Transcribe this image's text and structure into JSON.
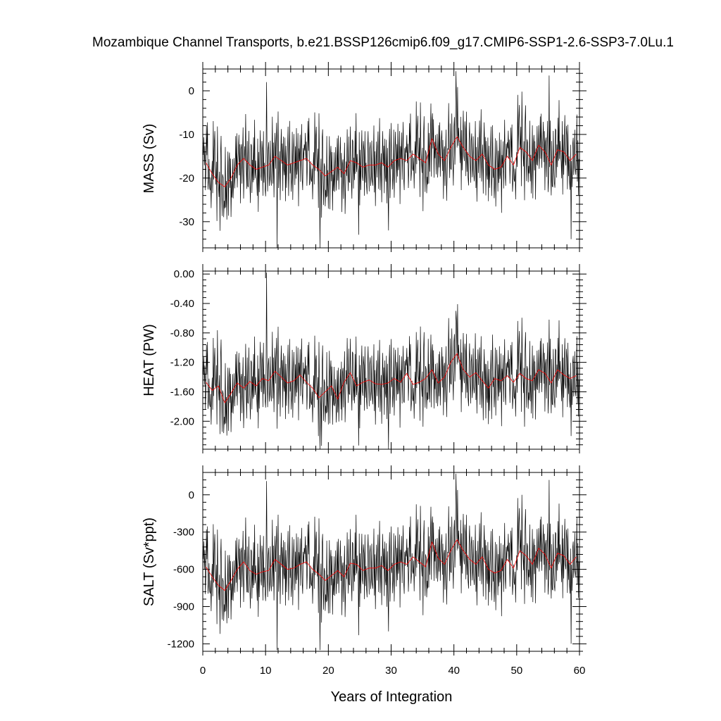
{
  "chart_data": {
    "type": "line",
    "title": "Mozambique Channel Transports, b.e21.BSSP126cmip6.f09_g17.CMIP6-SSP1-2.6-SSP3-7.0Lu.1",
    "xlabel": "Years of Integration",
    "xlim": [
      0,
      60
    ],
    "x_ticks": [
      0,
      10,
      20,
      30,
      40,
      50,
      60
    ],
    "x_tick_labels": [
      "0",
      "10",
      "20",
      "30",
      "40",
      "50",
      "60"
    ],
    "series_colors": {
      "monthly": "#000000",
      "annual": "#ff0000"
    },
    "panels": [
      {
        "name": "mass",
        "ylabel": "MASS (Sv)",
        "ylim": [
          -36,
          5
        ],
        "y_ticks": [
          0,
          -10,
          -20,
          -30
        ],
        "y_tick_labels": [
          "0",
          "-10",
          "-20",
          "-30"
        ],
        "annual_x": [
          0.5,
          1.5,
          2.5,
          3.5,
          4.5,
          5.5,
          6.5,
          7.5,
          8.5,
          9.5,
          10.5,
          11.5,
          12.5,
          13.5,
          14.5,
          15.5,
          16.5,
          17.5,
          18.5,
          19.5,
          20.5,
          21.5,
          22.5,
          23.5,
          24.5,
          25.5,
          26.5,
          27.5,
          28.5,
          29.5,
          30.5,
          31.5,
          32.5,
          33.5,
          34.5,
          35.5,
          36.5,
          37.5,
          38.5,
          39.5,
          40.5,
          41.5,
          42.5,
          43.5,
          44.5,
          45.5,
          46.5,
          47.5,
          48.5,
          49.5,
          50.5,
          51.5,
          52.5,
          53.5,
          54.5,
          55.5,
          56.5,
          57.5,
          58.5,
          59.5
        ],
        "annual_values": [
          -16.5,
          -19,
          -21,
          -22,
          -20,
          -17,
          -15.5,
          -17,
          -18,
          -17.5,
          -17,
          -15,
          -16,
          -17,
          -16.5,
          -16,
          -15.5,
          -17,
          -18,
          -19.5,
          -18.5,
          -17.5,
          -19,
          -16,
          -16.5,
          -17.5,
          -17,
          -17,
          -16.5,
          -17.5,
          -16,
          -15.5,
          -16,
          -14.5,
          -15.5,
          -16.5,
          -11,
          -14.5,
          -16,
          -13,
          -10.5,
          -13,
          -15,
          -16,
          -14.5,
          -17,
          -18,
          -17.5,
          -15,
          -17,
          -13,
          -14,
          -16,
          -12.5,
          -14,
          -17,
          -13.5,
          -14,
          -16,
          -14.5
        ]
      },
      {
        "name": "heat",
        "ylabel": "HEAT (PW)",
        "ylim": [
          -2.38,
          0.04
        ],
        "y_ticks": [
          0,
          -0.4,
          -0.8,
          -1.2,
          -1.6,
          -2.0
        ],
        "y_tick_labels": [
          "0.00",
          "-0.40",
          "-0.80",
          "-1.20",
          "-1.60",
          "-2.00"
        ],
        "annual_x": [
          0.5,
          1.5,
          2.5,
          3.5,
          4.5,
          5.5,
          6.5,
          7.5,
          8.5,
          9.5,
          10.5,
          11.5,
          12.5,
          13.5,
          14.5,
          15.5,
          16.5,
          17.5,
          18.5,
          19.5,
          20.5,
          21.5,
          22.5,
          23.5,
          24.5,
          25.5,
          26.5,
          27.5,
          28.5,
          29.5,
          30.5,
          31.5,
          32.5,
          33.5,
          34.5,
          35.5,
          36.5,
          37.5,
          38.5,
          39.5,
          40.5,
          41.5,
          42.5,
          43.5,
          44.5,
          45.5,
          46.5,
          47.5,
          48.5,
          49.5,
          50.5,
          51.5,
          52.5,
          53.5,
          54.5,
          55.5,
          56.5,
          57.5,
          58.5,
          59.5
        ],
        "annual_values": [
          -1.47,
          -1.58,
          -1.52,
          -1.75,
          -1.62,
          -1.48,
          -1.55,
          -1.46,
          -1.52,
          -1.42,
          -1.45,
          -1.32,
          -1.4,
          -1.48,
          -1.45,
          -1.37,
          -1.47,
          -1.55,
          -1.68,
          -1.6,
          -1.52,
          -1.7,
          -1.47,
          -1.34,
          -1.52,
          -1.47,
          -1.44,
          -1.49,
          -1.5,
          -1.48,
          -1.42,
          -1.47,
          -1.35,
          -1.5,
          -1.47,
          -1.42,
          -1.3,
          -1.48,
          -1.4,
          -1.2,
          -1.08,
          -1.3,
          -1.4,
          -1.34,
          -1.45,
          -1.55,
          -1.42,
          -1.45,
          -1.38,
          -1.47,
          -1.35,
          -1.42,
          -1.45,
          -1.3,
          -1.35,
          -1.48,
          -1.3,
          -1.37,
          -1.42,
          -1.38
        ]
      },
      {
        "name": "salt",
        "ylabel": "SALT (Sv*ppt)",
        "ylim": [
          -1260,
          180
        ],
        "y_ticks": [
          0,
          -300,
          -600,
          -900,
          -1200
        ],
        "y_tick_labels": [
          "0",
          "-300",
          "-600",
          "-900",
          "-1200"
        ],
        "annual_x": [
          0.5,
          1.5,
          2.5,
          3.5,
          4.5,
          5.5,
          6.5,
          7.5,
          8.5,
          9.5,
          10.5,
          11.5,
          12.5,
          13.5,
          14.5,
          15.5,
          16.5,
          17.5,
          18.5,
          19.5,
          20.5,
          21.5,
          22.5,
          23.5,
          24.5,
          25.5,
          26.5,
          27.5,
          28.5,
          29.5,
          30.5,
          31.5,
          32.5,
          33.5,
          34.5,
          35.5,
          36.5,
          37.5,
          38.5,
          39.5,
          40.5,
          41.5,
          42.5,
          43.5,
          44.5,
          45.5,
          46.5,
          47.5,
          48.5,
          49.5,
          50.5,
          51.5,
          52.5,
          53.5,
          54.5,
          55.5,
          56.5,
          57.5,
          58.5,
          59.5
        ],
        "annual_values": [
          -580,
          -660,
          -730,
          -770,
          -690,
          -600,
          -540,
          -610,
          -640,
          -620,
          -610,
          -520,
          -560,
          -600,
          -590,
          -560,
          -540,
          -600,
          -640,
          -690,
          -650,
          -610,
          -660,
          -550,
          -560,
          -610,
          -590,
          -590,
          -570,
          -610,
          -560,
          -540,
          -560,
          -500,
          -540,
          -580,
          -380,
          -510,
          -560,
          -450,
          -360,
          -450,
          -520,
          -560,
          -500,
          -600,
          -630,
          -610,
          -520,
          -590,
          -450,
          -490,
          -560,
          -430,
          -480,
          -590,
          -470,
          -490,
          -560,
          -500
        ]
      }
    ],
    "monthly_spec": {
      "count": 720,
      "dt": 0.08333,
      "waveform": [
        0.46,
        0.26,
        0.84,
        -0.08,
        0.55,
        -0.9,
        -0.2,
        1.23,
        0.25,
        1.33,
        -0.88,
        -0.58,
        0.12,
        -0.47,
        -0.55,
        -0.12,
        -1.13,
        -0.07,
        0.42,
        -0.64,
        1.73,
        -0.19,
        0.89,
        1.4,
        0.21,
        -0.07,
        0.68,
        -1.27,
        1.84,
        0.34,
        -0.1,
        -0.48,
        0.35,
        -1.59,
        0.97,
        1.53,
        -0.1,
        -0.96,
        0.41,
        0.3,
        -1.0,
        -0.46,
        -0.71,
        1.31,
        -0.68,
        0.19,
        -1.08,
        0.07,
        1.16,
        -1.24,
        0.53,
        0.84,
        -0.32,
        0.64,
        -1.28,
        -0.1,
        -0.64,
        0.63,
        -0.67,
        -0.12,
        0.66,
        -0.77,
        -0.23,
        0.95,
        -0.44,
        1.04,
        -0.74,
        0.13,
        0.46,
        0.99,
        -0.34,
        0.68,
        -1.26,
        0.32,
        0.47,
        -0.83,
        0.2,
        1.02,
        -1.32,
        -0.5,
        0.4,
        -0.07,
        1.46,
        -0.25,
        -1.0,
        0.79,
        -0.7,
        -0.72,
        1.12,
        -0.11,
        -0.58,
        -1.25,
        0.69,
        0.64,
        -0.92,
        0.17,
        -0.57,
        1.05,
        -0.36,
        1.63,
        -0.3,
        0.29,
        -0.17,
        -0.33,
        -0.87,
        1.01,
        -1.4,
        0.57,
        -0.75,
        0.35,
        1.21,
        -0.28,
        -0.45,
        0.86,
        0.56,
        -0.94,
        1.18,
        -0.51,
        0.14,
        -0.68,
        -0.96,
        0.52,
        1.11,
        -0.01,
        -0.87,
        0.52,
        0.75,
        -0.69,
        -0.37,
        0.8,
        -0.47,
        -0.68,
        0.04,
        1.3,
        -0.9,
        0.45,
        -1.35,
        -0.16,
        0.77,
        -0.41,
        0.42,
        1.1,
        -0.79,
        0.26,
        1.47,
        -0.9,
        -0.19,
        0.31,
        -1.3,
        0.27,
        1.04,
        -0.1,
        0.56,
        -1.0,
        0.79,
        -0.29,
        -0.48,
        0.9,
        -1.19,
        0.63,
        -0.75,
        0.02,
        0.56,
        1.26,
        -1.02,
        -0.21,
        1.45,
        -0.28,
        0.05,
        -0.95,
        -0.43,
        1.02,
        -1.22,
        -0.15,
        0.95,
        0.26,
        -0.73,
        0.54,
        -0.52,
        1.14,
        -0.39,
        -0.2,
        0.9,
        -1.5,
        0.4,
        -0.02,
        0.85,
        -0.7,
        0.3,
        1.2,
        -0.62,
        -0.97,
        0.41,
        -0.05
      ]
    },
    "spikes": [
      {
        "x": 10.2,
        "mass": 2,
        "heat": 0.02,
        "salt": 110
      },
      {
        "x": 11.8,
        "mass": -36,
        "heat": -2.1,
        "salt": -1250
      },
      {
        "x": 18.7,
        "mass": -36,
        "heat": -2.38,
        "salt": -1250
      },
      {
        "x": 24.8,
        "mass": -33,
        "heat": -2.33,
        "salt": -1130
      },
      {
        "x": 29.6,
        "mass": -32,
        "heat": -2.38,
        "salt": -1100
      },
      {
        "x": 40.3,
        "mass": 4.5,
        "heat": -0.5,
        "salt": 170
      },
      {
        "x": 55.2,
        "mass": 3.5,
        "heat": -0.62,
        "salt": 120
      },
      {
        "x": 58.7,
        "mass": -34,
        "heat": -2.2,
        "salt": -1200
      }
    ]
  }
}
